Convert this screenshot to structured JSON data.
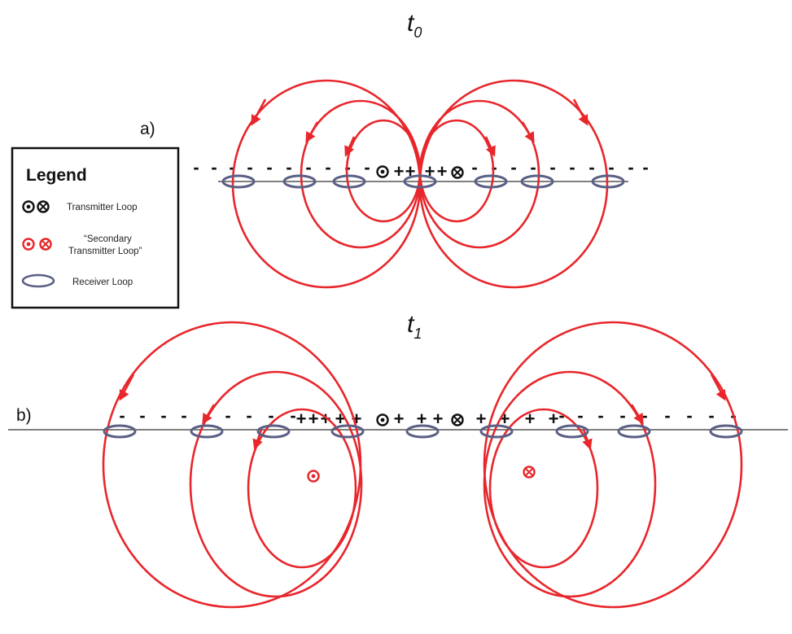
{
  "panel_a": {
    "time_label": "t",
    "time_subscript": "0",
    "label": "a)",
    "transmitter_symbols": [
      "out-of-page",
      "into-page"
    ],
    "signs": "- - - - - - - - ++ ++ - - - - - - - - -"
  },
  "panel_b": {
    "time_label": "t",
    "time_subscript": "1",
    "label": "b)",
    "transmitter_symbols": [
      "out-of-page",
      "into-page"
    ],
    "secondary_symbols": [
      "out-of-page",
      "into-page"
    ],
    "signs": "- - - - - - - - + + + + + + + + + + + + - - - - - - - -"
  },
  "legend": {
    "title": "Legend",
    "transmitter_label": "Transmitter Loop",
    "secondary_label_line1": "“Secondary",
    "secondary_label_line2": "Transmitter Loop”",
    "receiver_label": "Receiver Loop"
  },
  "colors": {
    "field_line": "#e8262b",
    "transmitter": "#111111",
    "secondary_transmitter": "#e8262b",
    "receiver_loop": "#5a5f85",
    "surface_line": "#555555"
  },
  "icons": [
    "dot-out-icon",
    "cross-in-icon",
    "receiver-loop-icon",
    "arrowhead-icon"
  ]
}
